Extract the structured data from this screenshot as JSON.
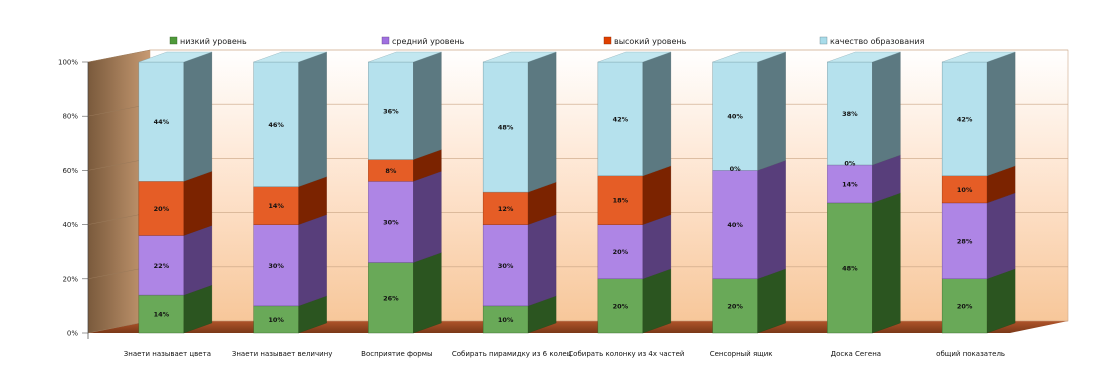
{
  "chart_data": {
    "type": "bar",
    "stacked": true,
    "percent_stacked": true,
    "three_d": true,
    "title": "",
    "xlabel": "",
    "ylabel": "",
    "ylim": [
      0,
      100
    ],
    "yticks": [
      "0%",
      "20%",
      "40%",
      "60%",
      "80%",
      "100%"
    ],
    "legend_position": "top",
    "categories": [
      "Знаети называет цвета",
      "Знаети называет величину",
      "Восприятие формы",
      "Собирать пирамидку из 6 колец",
      "Собирать колонку из 4х частей",
      "Сенсорный ящик",
      "Доска Сегена",
      "общий показатель"
    ],
    "series": [
      {
        "name": "низкий уровень",
        "color": "#4f9a3a",
        "values": [
          14,
          10,
          26,
          10,
          20,
          20,
          48,
          20
        ],
        "labels": [
          "14%",
          "10%",
          "26%",
          "10%",
          "20%",
          "20%",
          "48%",
          "20%"
        ]
      },
      {
        "name": "средний уровень",
        "color": "#a070e0",
        "values": [
          22,
          30,
          30,
          30,
          20,
          40,
          14,
          28
        ],
        "labels": [
          "22%",
          "30%",
          "30%",
          "30%",
          "20%",
          "40%",
          "14%",
          "28%"
        ]
      },
      {
        "name": "высокий уровень",
        "color": "#e04000",
        "values": [
          20,
          14,
          8,
          12,
          18,
          0,
          0,
          10
        ],
        "labels": [
          "20%",
          "14%",
          "8%",
          "12%",
          "18%",
          "0%",
          "0%",
          "10%"
        ]
      },
      {
        "name": "качество образования",
        "color": "#a8dcea",
        "values": [
          44,
          46,
          36,
          48,
          42,
          40,
          38,
          42
        ],
        "labels": [
          "44%",
          "46%",
          "36%",
          "48%",
          "42%",
          "40%",
          "38%",
          "42%"
        ]
      }
    ]
  }
}
